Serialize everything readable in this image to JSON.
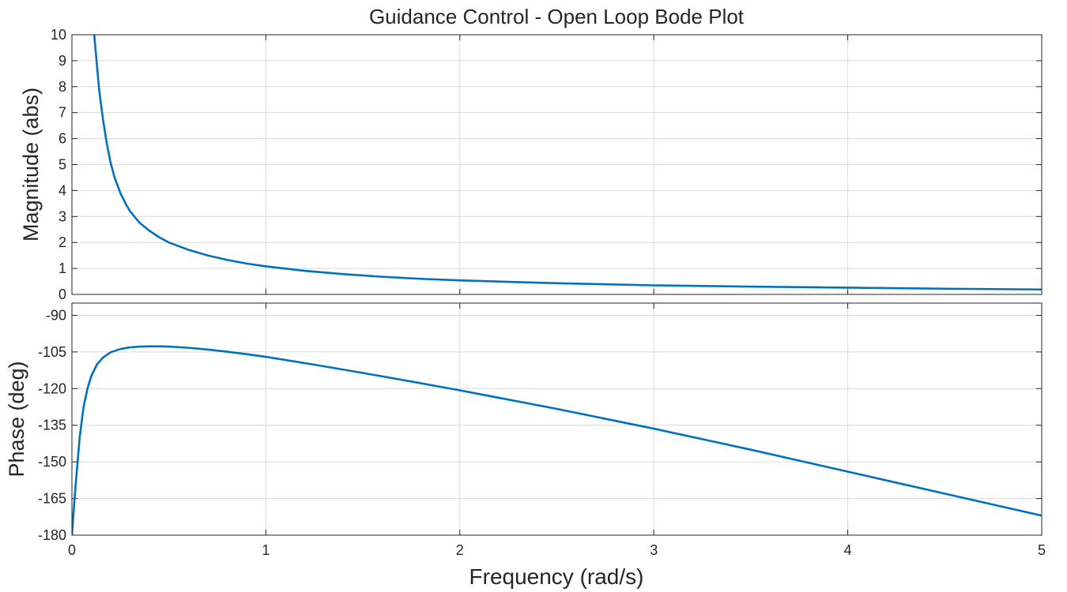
{
  "figure": {
    "title": "Guidance Control - Open Loop Bode Plot",
    "xlabel": "Frequency  (rad/s)"
  },
  "colors": {
    "series": "#0072BD",
    "grid": "#d9d9d9",
    "axis": "#262626",
    "background": "#ffffff"
  },
  "chart_data": [
    {
      "type": "line",
      "panel": "magnitude",
      "title": "Guidance Control - Open Loop Bode Plot",
      "xlabel": "",
      "ylabel": "Magnitude (abs)",
      "xlim": [
        0,
        5
      ],
      "ylim": [
        0,
        10
      ],
      "xticks": [
        0,
        1,
        2,
        3,
        4,
        5
      ],
      "yticks": [
        0,
        1,
        2,
        3,
        4,
        5,
        6,
        7,
        8,
        9,
        10
      ],
      "grid": true,
      "series": [
        {
          "x": [
            0.115,
            0.14,
            0.16,
            0.18,
            0.2,
            0.22,
            0.25,
            0.28,
            0.3,
            0.35,
            0.4,
            0.45,
            0.5,
            0.6,
            0.7,
            0.8,
            0.9,
            1.0,
            1.2,
            1.4,
            1.6,
            1.8,
            2.0,
            2.5,
            3.0,
            3.5,
            4.0,
            4.5,
            5.0
          ],
          "y": [
            10.0,
            7.9,
            6.75,
            5.8,
            5.05,
            4.5,
            3.9,
            3.45,
            3.2,
            2.75,
            2.45,
            2.2,
            2.0,
            1.72,
            1.5,
            1.33,
            1.19,
            1.08,
            0.91,
            0.78,
            0.68,
            0.6,
            0.54,
            0.43,
            0.35,
            0.3,
            0.26,
            0.22,
            0.19
          ]
        }
      ]
    },
    {
      "type": "line",
      "panel": "phase",
      "title": "",
      "xlabel": "Frequency  (rad/s)",
      "ylabel": "Phase (deg)",
      "xlim": [
        0,
        5
      ],
      "ylim": [
        -180,
        -85
      ],
      "xticks": [
        0,
        1,
        2,
        3,
        4,
        5
      ],
      "yticks": [
        -180,
        -165,
        -150,
        -135,
        -120,
        -105,
        -90
      ],
      "grid": true,
      "series": [
        {
          "x": [
            0.0,
            0.01,
            0.02,
            0.04,
            0.06,
            0.08,
            0.1,
            0.13,
            0.16,
            0.2,
            0.25,
            0.3,
            0.35,
            0.4,
            0.45,
            0.5,
            0.6,
            0.7,
            0.8,
            0.9,
            1.0,
            1.25,
            1.5,
            1.75,
            2.0,
            2.5,
            3.0,
            3.5,
            4.0,
            4.5,
            5.0
          ],
          "y": [
            -180.0,
            -169.0,
            -158.5,
            -140.0,
            -127.5,
            -120.0,
            -114.8,
            -110.0,
            -107.3,
            -105.1,
            -103.8,
            -103.1,
            -102.8,
            -102.7,
            -102.7,
            -102.8,
            -103.3,
            -104.0,
            -104.9,
            -105.9,
            -107.0,
            -110.2,
            -113.6,
            -117.1,
            -120.7,
            -128.3,
            -136.4,
            -145.0,
            -154.0,
            -163.0,
            -172.0
          ]
        }
      ]
    }
  ]
}
